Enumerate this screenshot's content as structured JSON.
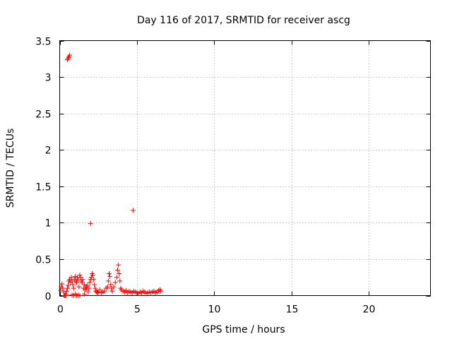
{
  "chart_data": {
    "type": "scatter",
    "title": "Day 116 of 2017, SRMTID for receiver ascg",
    "xlabel": "GPS time / hours",
    "ylabel": "SRMTID / TECUs",
    "xlim": [
      0,
      24
    ],
    "ylim": [
      0,
      3.5
    ],
    "xticks": [
      0,
      5,
      10,
      15,
      20
    ],
    "xtick_labels": [
      "0",
      "5",
      "10",
      "15",
      "20"
    ],
    "yticks": [
      0,
      0.5,
      1,
      1.5,
      2,
      2.5,
      3,
      3.5
    ],
    "ytick_labels": [
      "0",
      "0.5",
      "1",
      "1.5",
      "2",
      "2.5",
      "3",
      "3.5"
    ],
    "grid": true,
    "marker": "+",
    "series": [
      {
        "name": "SRMTID",
        "color": "#ff0000",
        "x": [
          0.05,
          0.1,
          0.15,
          0.2,
          0.25,
          0.3,
          0.35,
          0.4,
          0.45,
          0.5,
          0.55,
          0.6,
          0.65,
          0.7,
          0.75,
          0.8,
          0.85,
          0.9,
          0.95,
          1.0,
          1.05,
          1.1,
          1.15,
          1.2,
          1.25,
          1.3,
          1.35,
          1.4,
          1.45,
          1.5,
          1.55,
          1.6,
          1.65,
          1.7,
          1.75,
          1.8,
          1.85,
          1.9,
          1.95,
          2.0,
          2.05,
          2.1,
          2.15,
          2.2,
          2.25,
          2.3,
          2.35,
          2.4,
          2.45,
          2.5,
          2.6,
          2.7,
          2.8,
          2.9,
          3.0,
          3.1,
          3.15,
          3.2,
          3.25,
          3.3,
          3.35,
          3.4,
          3.5,
          3.6,
          3.7,
          3.75,
          3.8,
          3.85,
          3.9,
          3.95,
          4.0,
          4.1,
          4.2,
          4.3,
          4.4,
          4.5,
          4.6,
          4.7,
          4.8,
          4.9,
          5.0,
          5.1,
          5.2,
          5.3,
          5.4,
          5.5,
          5.6,
          5.7,
          5.8,
          5.9,
          6.0,
          6.1,
          6.2,
          6.3,
          6.4,
          6.5,
          6.55,
          0.3,
          0.35,
          0.4,
          0.8,
          0.9,
          1.0,
          1.1,
          1.2,
          1.3,
          1.6,
          0.5,
          0.55,
          0.6,
          0.65,
          2.0,
          4.75
        ],
        "y": [
          0.07,
          0.12,
          0.16,
          0.1,
          0.05,
          0.0,
          0.0,
          0.02,
          0.06,
          0.1,
          0.14,
          0.2,
          0.22,
          0.18,
          0.25,
          0.2,
          0.15,
          0.1,
          0.22,
          0.26,
          0.2,
          0.18,
          0.25,
          0.22,
          0.12,
          0.28,
          0.25,
          0.2,
          0.18,
          0.22,
          0.1,
          0.15,
          0.08,
          0.12,
          0.1,
          0.14,
          0.05,
          0.1,
          0.18,
          0.22,
          0.25,
          0.3,
          0.28,
          0.22,
          0.15,
          0.1,
          0.06,
          0.05,
          0.04,
          0.05,
          0.08,
          0.04,
          0.05,
          0.06,
          0.1,
          0.12,
          0.2,
          0.3,
          0.26,
          0.15,
          0.1,
          0.06,
          0.12,
          0.18,
          0.25,
          0.35,
          0.42,
          0.3,
          0.2,
          0.1,
          0.08,
          0.06,
          0.05,
          0.07,
          0.04,
          0.06,
          0.05,
          0.04,
          0.06,
          0.05,
          0.04,
          0.03,
          0.05,
          0.04,
          0.06,
          0.05,
          0.03,
          0.04,
          0.05,
          0.04,
          0.05,
          0.06,
          0.04,
          0.05,
          0.07,
          0.08,
          0.06,
          0.0,
          0.0,
          0.0,
          0.01,
          0.0,
          0.02,
          0.0,
          0.01,
          0.0,
          0.02,
          3.24,
          3.26,
          3.28,
          3.3,
          0.99,
          1.17
        ]
      }
    ]
  }
}
